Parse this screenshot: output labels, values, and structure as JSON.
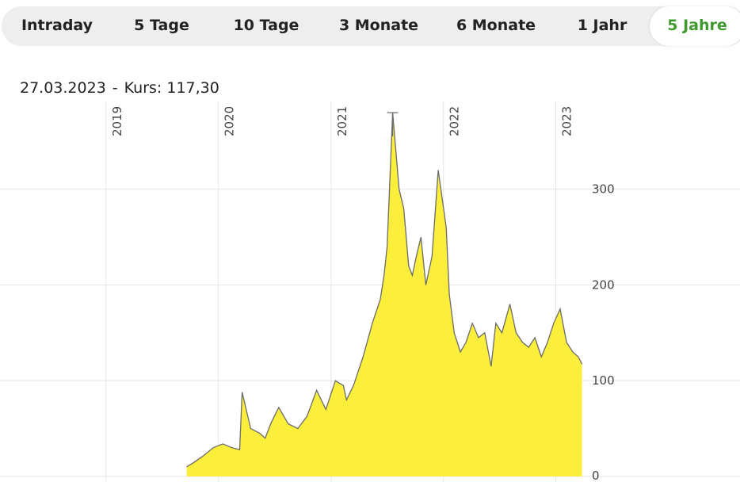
{
  "tabs": [
    {
      "label": "Intraday",
      "active": false
    },
    {
      "label": "5 Tage",
      "active": false
    },
    {
      "label": "10 Tage",
      "active": false
    },
    {
      "label": "3 Monate",
      "active": false
    },
    {
      "label": "6 Monate",
      "active": false
    },
    {
      "label": "1 Jahr",
      "active": false
    },
    {
      "label": "5 Jahre",
      "active": true
    }
  ],
  "info": {
    "date": "27.03.2023",
    "separator": "-",
    "price_label": "Kurs:",
    "price_value": "117,30"
  },
  "colors": {
    "area_fill": "#fbef3c",
    "line": "#6b6b6b",
    "active_tab": "#3f9a2e",
    "grid": "#e6e6e6"
  },
  "chart_data": {
    "type": "area",
    "title": "",
    "xlabel": "",
    "ylabel": "",
    "x_tick_labels": [
      "2019",
      "2020",
      "2021",
      "2022",
      "2023"
    ],
    "y_tick_labels": [
      "0",
      "100",
      "200",
      "300"
    ],
    "ylim": [
      0,
      390
    ],
    "xlim": [
      "2018-03-27",
      "2023-04-10"
    ],
    "y_axis_position": "right",
    "grid": true,
    "series": [
      {
        "x": [
          "2019-09-20",
          "2019-10-15",
          "2019-11-15",
          "2019-12-15",
          "2020-01-15",
          "2020-02-15",
          "2020-03-10",
          "2020-03-18",
          "2020-04-15",
          "2020-05-15",
          "2020-06-01",
          "2020-06-20",
          "2020-07-15",
          "2020-08-15",
          "2020-09-15",
          "2020-10-15",
          "2020-11-15",
          "2020-12-15",
          "2021-01-15",
          "2021-02-10",
          "2021-02-20",
          "2021-03-15",
          "2021-04-15",
          "2021-05-15",
          "2021-06-10",
          "2021-06-22",
          "2021-07-02",
          "2021-07-20",
          "2021-08-10",
          "2021-08-25",
          "2021-09-10",
          "2021-09-22",
          "2021-10-05",
          "2021-10-20",
          "2021-11-05",
          "2021-11-25",
          "2021-12-15",
          "2022-01-10",
          "2022-01-20",
          "2022-02-05",
          "2022-02-25",
          "2022-03-15",
          "2022-04-05",
          "2022-04-25",
          "2022-05-15",
          "2022-06-05",
          "2022-06-20",
          "2022-07-10",
          "2022-08-05",
          "2022-08-25",
          "2022-09-15",
          "2022-10-05",
          "2022-10-25",
          "2022-11-15",
          "2022-12-05",
          "2022-12-25",
          "2023-01-15",
          "2023-02-05",
          "2023-02-25",
          "2023-03-15",
          "2023-03-27"
        ],
        "values": [
          10,
          15,
          22,
          30,
          34,
          30,
          28,
          88,
          50,
          45,
          40,
          56,
          72,
          55,
          50,
          63,
          90,
          70,
          100,
          95,
          80,
          95,
          125,
          160,
          185,
          210,
          240,
          380,
          300,
          280,
          220,
          210,
          230,
          250,
          200,
          230,
          320,
          260,
          190,
          150,
          130,
          140,
          160,
          145,
          150,
          115,
          160,
          150,
          180,
          150,
          140,
          135,
          145,
          125,
          140,
          160,
          175,
          140,
          130,
          125,
          117.3
        ]
      }
    ]
  }
}
